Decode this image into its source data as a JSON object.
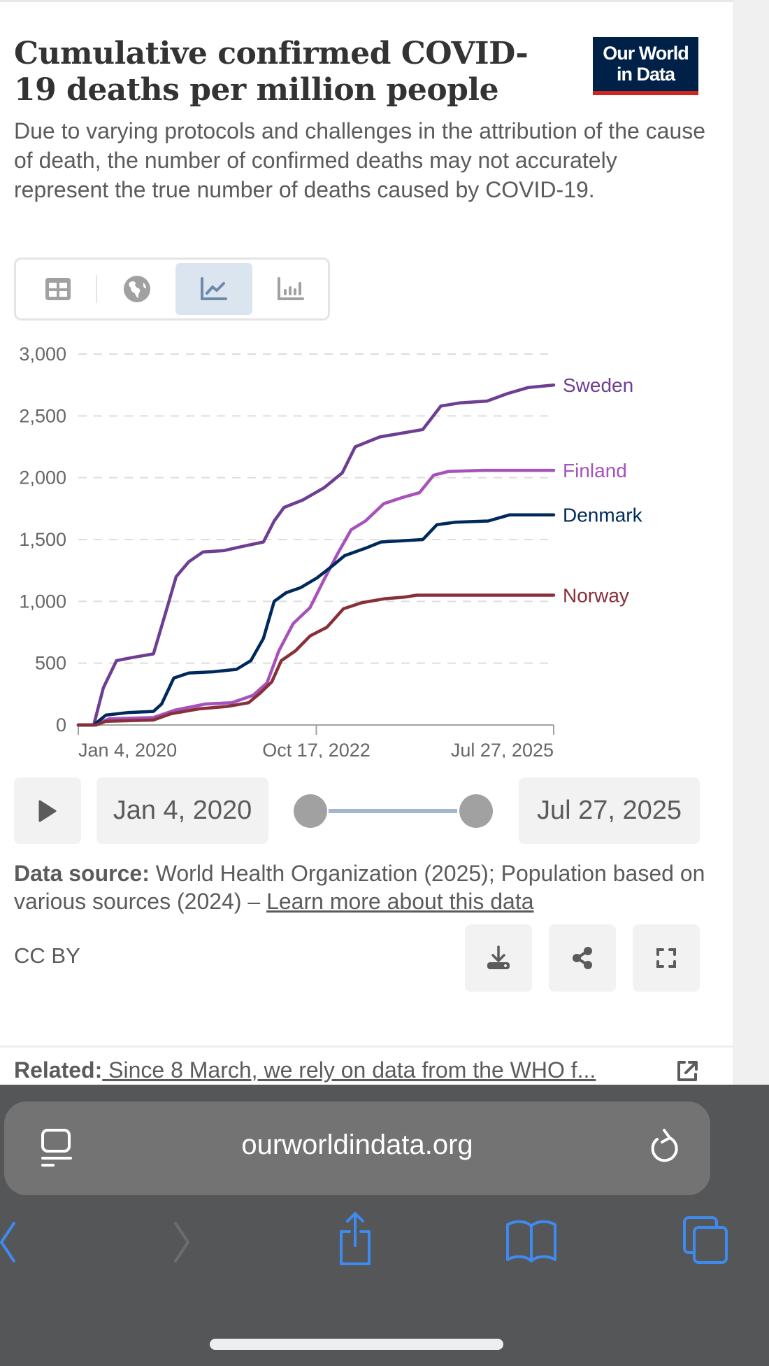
{
  "header": {
    "title": "Cumulative confirmed COVID-19 deaths per million people",
    "subtitle": "Due to varying protocols and challenges in the attribution of the cause of death, the number of confirmed deaths may not accurately represent the true number of deaths caused by COVID-19.",
    "logo_line1": "Our World",
    "logo_line2": "in Data"
  },
  "tabs": [
    {
      "name": "table",
      "icon": "table-icon",
      "active": false
    },
    {
      "name": "map",
      "icon": "globe-icon",
      "active": false
    },
    {
      "name": "line-chart",
      "icon": "line-chart-icon",
      "active": true
    },
    {
      "name": "bar-chart",
      "icon": "bar-chart-icon",
      "active": false
    }
  ],
  "colors": {
    "Sweden": "#6d3e91",
    "Finland": "#a652ba",
    "Denmark": "#00295b",
    "Norway": "#883039",
    "grid": "#dddddd",
    "axis": "#a1a1a1",
    "accent_tab": "#dbe5f0",
    "logo_bg": "#002147",
    "logo_bar": "#ce261e"
  },
  "chart_data": {
    "type": "line",
    "title": "Cumulative confirmed COVID-19 deaths per million people",
    "xlabel": "",
    "ylabel": "",
    "xlim": [
      "2020-01-04",
      "2025-07-27"
    ],
    "ylim": [
      0,
      3000
    ],
    "grid": true,
    "yticks": [
      0,
      500,
      1000,
      1500,
      2000,
      2500,
      3000
    ],
    "ytick_labels": [
      "0",
      "500",
      "1,000",
      "1,500",
      "2,000",
      "2,500",
      "3,000"
    ],
    "xticks": [
      "2020-01-04",
      "2022-10-17",
      "2025-07-27"
    ],
    "xtick_labels": [
      "Jan 4, 2020",
      "Oct 17, 2022",
      "Jul 27, 2025"
    ],
    "legend": "right-end labels",
    "series": [
      {
        "name": "Sweden",
        "points": [
          [
            "2020-01-04",
            0
          ],
          [
            "2020-03-10",
            0
          ],
          [
            "2020-04-20",
            300
          ],
          [
            "2020-06-15",
            520
          ],
          [
            "2020-08-20",
            545
          ],
          [
            "2020-11-20",
            575
          ],
          [
            "2021-01-10",
            900
          ],
          [
            "2021-02-25",
            1200
          ],
          [
            "2021-04-20",
            1320
          ],
          [
            "2021-06-20",
            1400
          ],
          [
            "2021-09-15",
            1410
          ],
          [
            "2021-11-25",
            1440
          ],
          [
            "2022-03-05",
            1480
          ],
          [
            "2022-04-20",
            1650
          ],
          [
            "2022-06-01",
            1760
          ],
          [
            "2022-08-20",
            1820
          ],
          [
            "2022-11-20",
            1920
          ],
          [
            "2023-02-05",
            2040
          ],
          [
            "2023-04-01",
            2250
          ],
          [
            "2023-07-15",
            2330
          ],
          [
            "2023-10-15",
            2360
          ],
          [
            "2024-01-15",
            2390
          ],
          [
            "2024-04-01",
            2580
          ],
          [
            "2024-06-20",
            2605
          ],
          [
            "2024-10-15",
            2620
          ],
          [
            "2025-01-10",
            2680
          ],
          [
            "2025-04-10",
            2730
          ],
          [
            "2025-07-27",
            2750
          ]
        ]
      },
      {
        "name": "Finland",
        "points": [
          [
            "2020-01-04",
            0
          ],
          [
            "2020-03-10",
            0
          ],
          [
            "2020-05-15",
            50
          ],
          [
            "2020-11-20",
            60
          ],
          [
            "2021-02-20",
            120
          ],
          [
            "2021-07-01",
            170
          ],
          [
            "2021-10-20",
            180
          ],
          [
            "2022-01-20",
            240
          ],
          [
            "2022-03-20",
            340
          ],
          [
            "2022-05-10",
            600
          ],
          [
            "2022-07-10",
            820
          ],
          [
            "2022-09-20",
            950
          ],
          [
            "2022-11-20",
            1180
          ],
          [
            "2023-01-20",
            1400
          ],
          [
            "2023-03-15",
            1580
          ],
          [
            "2023-05-15",
            1650
          ],
          [
            "2023-08-01",
            1790
          ],
          [
            "2023-10-20",
            1840
          ],
          [
            "2024-01-01",
            1880
          ],
          [
            "2024-03-01",
            2020
          ],
          [
            "2024-05-01",
            2050
          ],
          [
            "2024-10-01",
            2060
          ],
          [
            "2025-07-27",
            2060
          ]
        ]
      },
      {
        "name": "Denmark",
        "points": [
          [
            "2020-01-04",
            0
          ],
          [
            "2020-03-10",
            0
          ],
          [
            "2020-05-01",
            80
          ],
          [
            "2020-08-01",
            100
          ],
          [
            "2020-11-20",
            110
          ],
          [
            "2020-12-25",
            170
          ],
          [
            "2021-02-15",
            380
          ],
          [
            "2021-04-20",
            420
          ],
          [
            "2021-08-01",
            430
          ],
          [
            "2021-11-10",
            450
          ],
          [
            "2022-01-10",
            520
          ],
          [
            "2022-03-05",
            700
          ],
          [
            "2022-04-20",
            1000
          ],
          [
            "2022-06-10",
            1070
          ],
          [
            "2022-08-10",
            1110
          ],
          [
            "2022-10-20",
            1190
          ],
          [
            "2022-12-20",
            1280
          ],
          [
            "2023-02-15",
            1370
          ],
          [
            "2023-05-15",
            1430
          ],
          [
            "2023-07-20",
            1480
          ],
          [
            "2023-10-20",
            1490
          ],
          [
            "2024-01-15",
            1500
          ],
          [
            "2024-03-15",
            1620
          ],
          [
            "2024-06-01",
            1640
          ],
          [
            "2024-10-20",
            1650
          ],
          [
            "2025-01-20",
            1700
          ],
          [
            "2025-07-27",
            1700
          ]
        ]
      },
      {
        "name": "Norway",
        "points": [
          [
            "2020-01-04",
            0
          ],
          [
            "2020-03-20",
            0
          ],
          [
            "2020-05-01",
            30
          ],
          [
            "2020-11-20",
            40
          ],
          [
            "2021-02-01",
            90
          ],
          [
            "2021-06-01",
            130
          ],
          [
            "2021-10-01",
            150
          ],
          [
            "2022-01-01",
            180
          ],
          [
            "2022-02-20",
            260
          ],
          [
            "2022-04-10",
            350
          ],
          [
            "2022-05-20",
            520
          ],
          [
            "2022-07-20",
            600
          ],
          [
            "2022-09-20",
            720
          ],
          [
            "2022-12-01",
            790
          ],
          [
            "2023-02-10",
            940
          ],
          [
            "2023-05-01",
            990
          ],
          [
            "2023-08-01",
            1020
          ],
          [
            "2023-11-01",
            1035
          ],
          [
            "2023-12-20",
            1050
          ],
          [
            "2024-06-01",
            1050
          ],
          [
            "2025-07-27",
            1050
          ]
        ]
      }
    ]
  },
  "timeline": {
    "play_label": "play",
    "start_date": "Jan 4, 2020",
    "end_date": "Jul 27, 2025",
    "start_fraction": 0,
    "end_fraction": 1
  },
  "footer": {
    "source_label": "Data source:",
    "source_text": " World Health Organization (2025); Population based on various sources (2024) – ",
    "learn_more": "Learn more about this data",
    "license": "CC BY",
    "related_label": "Related:",
    "related_text": " Since 8 March, we rely on data from the WHO f..."
  },
  "browser": {
    "url": "ourworldindata.org"
  }
}
